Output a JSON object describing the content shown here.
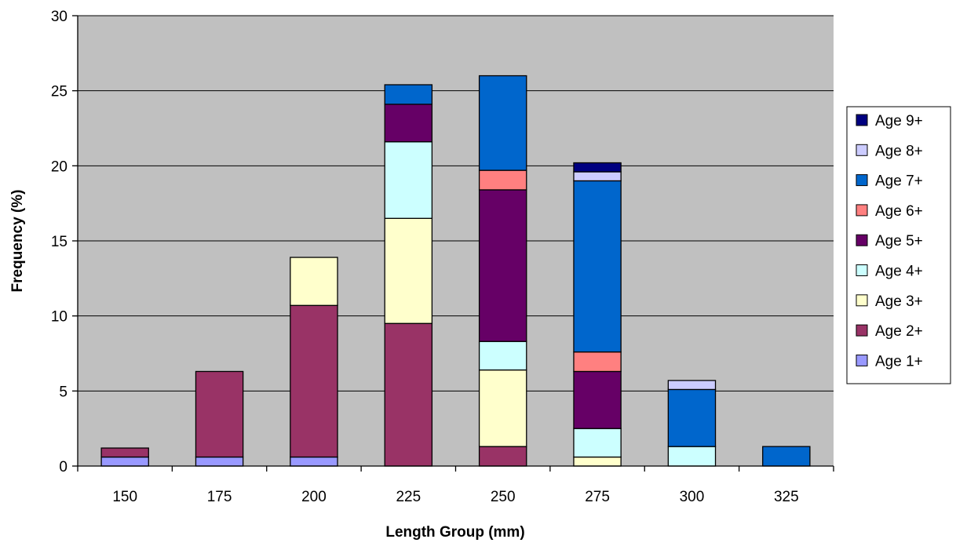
{
  "chart_data": {
    "type": "bar",
    "stacked": true,
    "title": "",
    "xlabel": "Length Group (mm)",
    "ylabel": "Frequency (%)",
    "ylim": [
      0,
      30
    ],
    "yticks": [
      0,
      5,
      10,
      15,
      20,
      25,
      30
    ],
    "grid": true,
    "legend_position": "right",
    "plot_background": "#C0C0C0",
    "categories": [
      "150",
      "175",
      "200",
      "225",
      "250",
      "275",
      "300",
      "325"
    ],
    "series": [
      {
        "name": "Age 1+",
        "color": "#9999FF",
        "values": [
          0.6,
          0.6,
          0.6,
          0,
          0,
          0,
          0,
          0
        ]
      },
      {
        "name": "Age 2+",
        "color": "#993366",
        "values": [
          0.6,
          5.7,
          10.1,
          9.5,
          1.3,
          0,
          0,
          0
        ]
      },
      {
        "name": "Age 3+",
        "color": "#FFFFCC",
        "values": [
          0,
          0,
          3.2,
          7.0,
          5.1,
          0.6,
          0,
          0
        ]
      },
      {
        "name": "Age 4+",
        "color": "#CCFFFF",
        "values": [
          0,
          0,
          0,
          5.1,
          1.9,
          1.9,
          1.3,
          0
        ]
      },
      {
        "name": "Age 5+",
        "color": "#660066",
        "values": [
          0,
          0,
          0,
          2.5,
          10.1,
          3.8,
          0,
          0
        ]
      },
      {
        "name": "Age 6+",
        "color": "#FF8080",
        "values": [
          0,
          0,
          0,
          0,
          1.3,
          1.3,
          0,
          0
        ]
      },
      {
        "name": "Age 7+",
        "color": "#0066CC",
        "values": [
          0,
          0,
          0,
          1.3,
          6.3,
          11.4,
          3.8,
          1.3
        ]
      },
      {
        "name": "Age 8+",
        "color": "#CCCCFF",
        "values": [
          0,
          0,
          0,
          0,
          0,
          0.6,
          0.6,
          0
        ]
      },
      {
        "name": "Age 9+",
        "color": "#000080",
        "values": [
          0,
          0,
          0,
          0,
          0,
          0.6,
          0,
          0
        ]
      }
    ]
  }
}
